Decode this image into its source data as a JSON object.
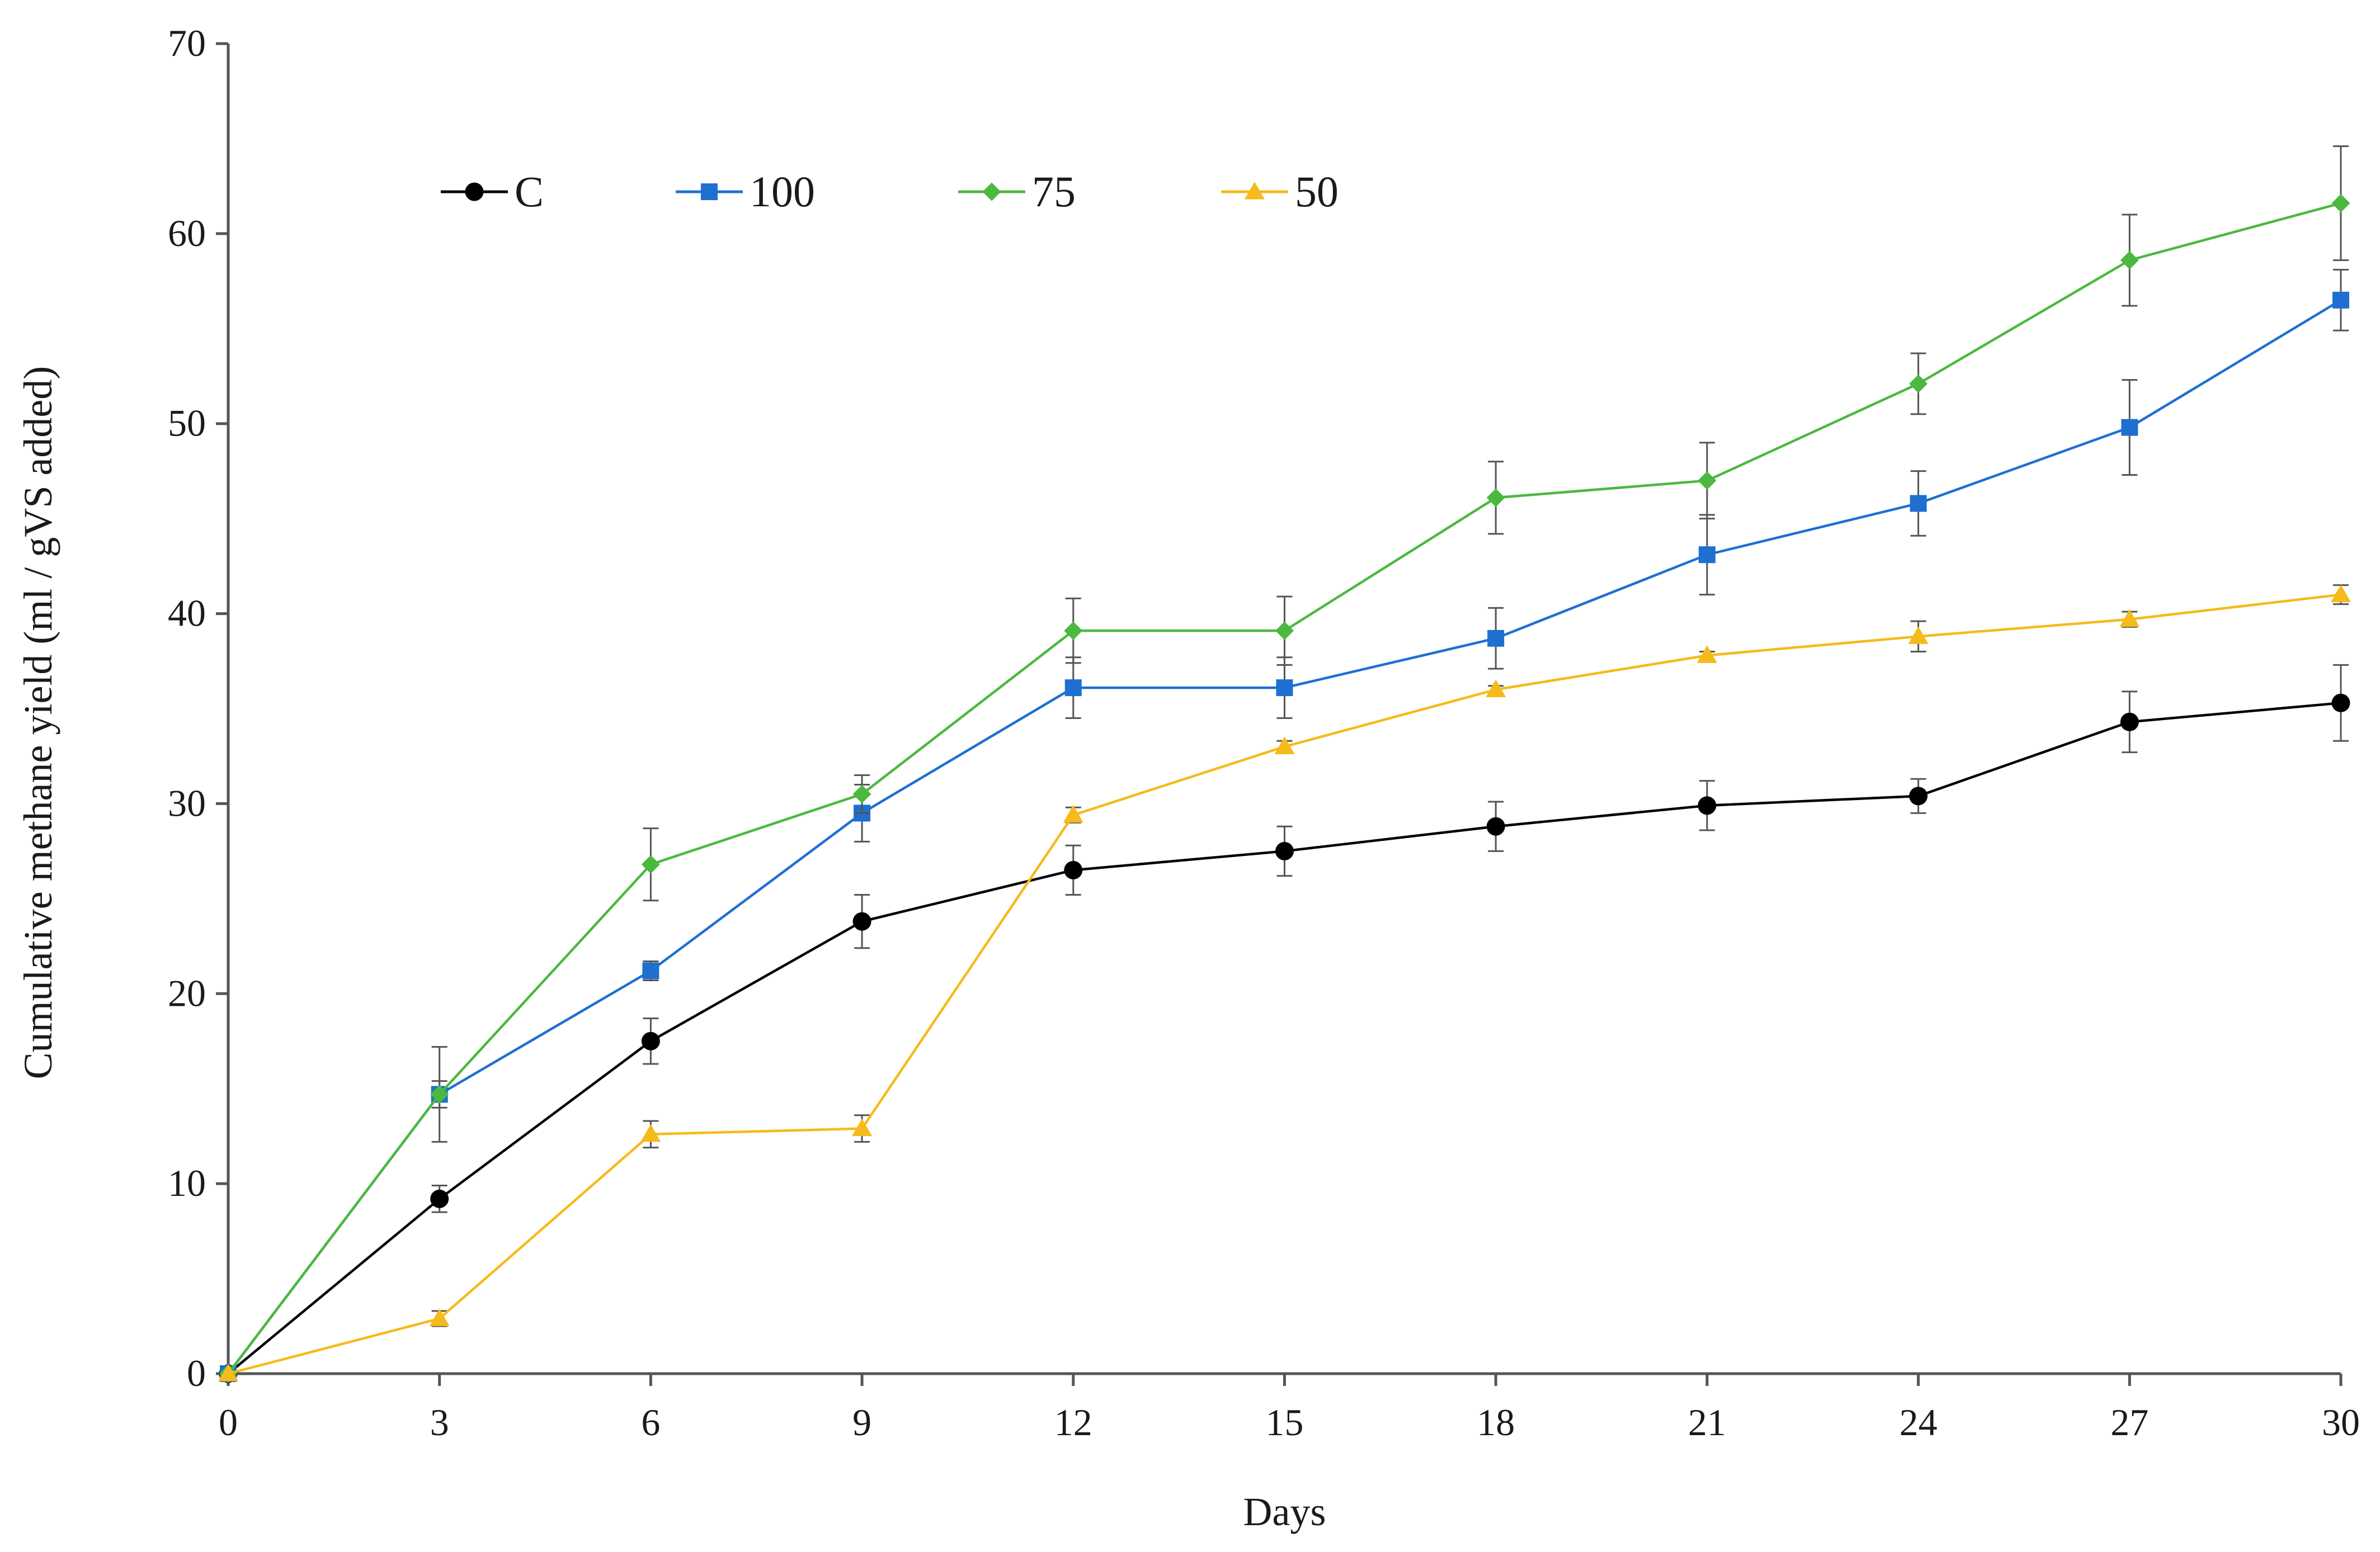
{
  "chart_data": {
    "type": "line",
    "title": "",
    "xlabel": "Days",
    "ylabel": "Cumulative methane yield (ml / gVS added)",
    "x": [
      0,
      3,
      6,
      9,
      12,
      15,
      18,
      21,
      24,
      27,
      30
    ],
    "xlim": [
      0,
      30
    ],
    "ylim": [
      0,
      70
    ],
    "xticks": [
      "0",
      "3",
      "6",
      "9",
      "12",
      "15",
      "18",
      "21",
      "24",
      "27",
      "30"
    ],
    "yticks": [
      "0",
      "10",
      "20",
      "30",
      "40",
      "50",
      "60",
      "70"
    ],
    "grid": false,
    "legend_position": "top-left",
    "series": [
      {
        "name": "C",
        "color": "#000000",
        "marker": "circle",
        "values": [
          0,
          9.2,
          17.5,
          23.8,
          26.5,
          27.5,
          28.8,
          29.9,
          30.4,
          34.3,
          35.3
        ],
        "errors": [
          0,
          0.7,
          1.2,
          1.4,
          1.3,
          1.3,
          1.3,
          1.3,
          0.9,
          1.6,
          2.0
        ]
      },
      {
        "name": "100",
        "color": "#1f6fd1",
        "marker": "square",
        "values": [
          0,
          14.7,
          21.2,
          29.5,
          36.1,
          36.1,
          38.7,
          43.1,
          45.8,
          49.8,
          56.5
        ],
        "errors": [
          0,
          0.7,
          0.5,
          1.5,
          1.6,
          1.6,
          1.6,
          2.1,
          1.7,
          2.5,
          1.6
        ]
      },
      {
        "name": "75",
        "color": "#4cb83f",
        "marker": "diamond",
        "values": [
          0,
          14.7,
          26.8,
          30.5,
          39.1,
          39.1,
          46.1,
          47.0,
          52.1,
          58.6,
          61.6
        ],
        "errors": [
          0,
          2.5,
          1.9,
          1.0,
          1.7,
          1.8,
          1.9,
          2.0,
          1.6,
          2.4,
          3.0
        ]
      },
      {
        "name": "50",
        "color": "#f5bb1a",
        "marker": "triangle",
        "values": [
          0,
          2.9,
          12.6,
          12.9,
          29.4,
          33.0,
          36.0,
          37.8,
          38.8,
          39.7,
          41.0
        ],
        "errors": [
          0,
          0.4,
          0.7,
          0.7,
          0.4,
          0.3,
          0.2,
          0.2,
          0.8,
          0.4,
          0.5
        ]
      }
    ]
  }
}
